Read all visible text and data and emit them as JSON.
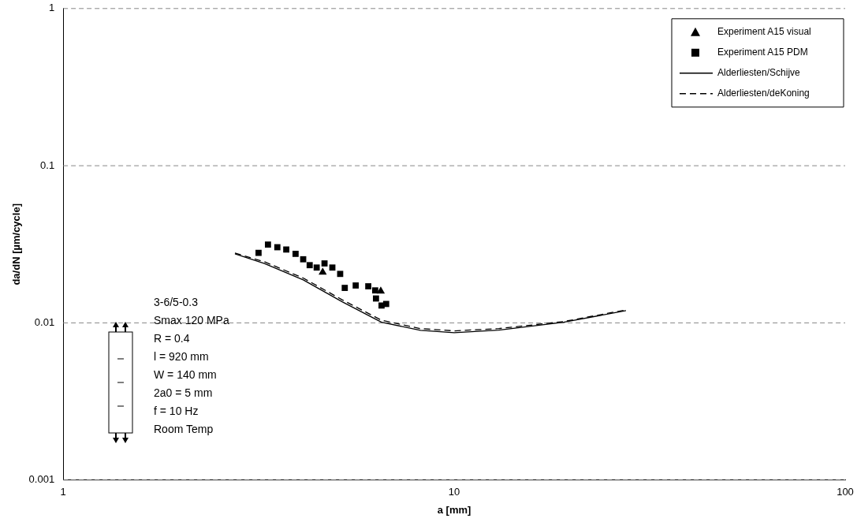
{
  "chart_data": {
    "type": "scatter",
    "xlabel": "a [mm]",
    "ylabel": "da/dN [µm/cycle]",
    "log": "xy",
    "xlim": [
      1,
      100
    ],
    "xticks": [
      1,
      10,
      100
    ],
    "ylim": [
      0.001,
      1
    ],
    "yticks": [
      1,
      0.1,
      0.01,
      0.001
    ],
    "grid": "y",
    "legend": "top right",
    "series": [
      {
        "name": "Experiment A15 visual",
        "type": "scatter",
        "marker": "triangle",
        "color": "#000000",
        "x": [
          4.61,
          6.49
        ],
        "values": [
          0.021,
          0.0159
        ]
      },
      {
        "name": "Experiment A15 PDM",
        "type": "scatter",
        "marker": "square",
        "color": "#000000",
        "x": [
          3.16,
          3.34,
          3.53,
          3.72,
          3.93,
          4.11,
          4.27,
          4.45,
          4.66,
          4.88,
          5.11,
          5.25,
          5.6,
          6.03,
          6.28,
          6.31,
          6.52,
          6.7
        ],
        "values": [
          0.0279,
          0.0315,
          0.0303,
          0.0293,
          0.0275,
          0.0254,
          0.0233,
          0.0225,
          0.0239,
          0.0225,
          0.0205,
          0.0167,
          0.0173,
          0.0171,
          0.0161,
          0.0143,
          0.0129,
          0.0132
        ]
      },
      {
        "name": "Alderliesten/Schijve",
        "type": "line",
        "marker": "none",
        "line_style": "solid",
        "color": "#000000",
        "x": [
          2.75,
          3.27,
          4.11,
          5.18,
          6.52,
          8.2,
          10,
          13.0,
          19.05,
          27.5
        ],
        "values": [
          0.0275,
          0.0239,
          0.0188,
          0.0136,
          0.0101,
          0.00898,
          0.00867,
          0.009,
          0.0101,
          0.01197
        ]
      },
      {
        "name": "Alderliesten/deKoning",
        "type": "line",
        "marker": "none",
        "line_style": "dashed",
        "color": "#000000",
        "x": [
          2.75,
          3.27,
          4.11,
          5.18,
          6.52,
          8.2,
          10,
          13.0,
          19.05,
          27.5
        ],
        "values": [
          0.0278,
          0.0245,
          0.0193,
          0.014,
          0.0104,
          0.0092,
          0.0089,
          0.0092,
          0.0102,
          0.0121
        ]
      }
    ],
    "annotations": [
      "3-6/5-0.3",
      "Smax 120 MPa",
      "R = 0.4",
      "l = 920 mm",
      "W = 140 mm",
      "2a0 = 5 mm",
      "f = 10 Hz",
      "Room Temp"
    ]
  }
}
